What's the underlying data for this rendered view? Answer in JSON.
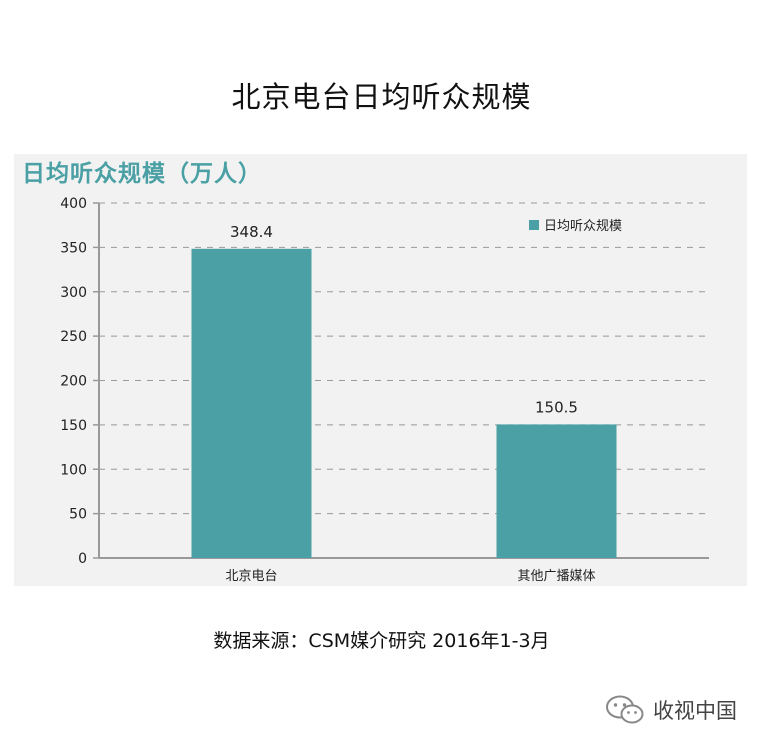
{
  "page_title": "北京电台日均听众规模",
  "panel_title": "日均听众规模（万人）",
  "source": "数据来源：CSM媒介研究 2016年1-3月",
  "brand": {
    "name": "收视中国",
    "icon": "wechat-icon"
  },
  "colors": {
    "bar": "#4aa0a4",
    "panel_bg": "#f1f2f1",
    "title_accent": "#4aa0a4",
    "grid": "#999999",
    "axis": "#999999"
  },
  "chart_data": {
    "type": "bar",
    "title": "日均听众规模（万人）",
    "categories": [
      "北京电台",
      "其他广播媒体"
    ],
    "series": [
      {
        "name": "日均听众规模",
        "values": [
          348.4,
          150.5
        ]
      }
    ],
    "data_labels": [
      "348.4",
      "150.5"
    ],
    "ylim": [
      0,
      400
    ],
    "yticks": [
      0,
      50,
      100,
      150,
      200,
      250,
      300,
      350,
      400
    ],
    "grid": true,
    "grid_style": "dashed",
    "legend_position": "top-right"
  }
}
